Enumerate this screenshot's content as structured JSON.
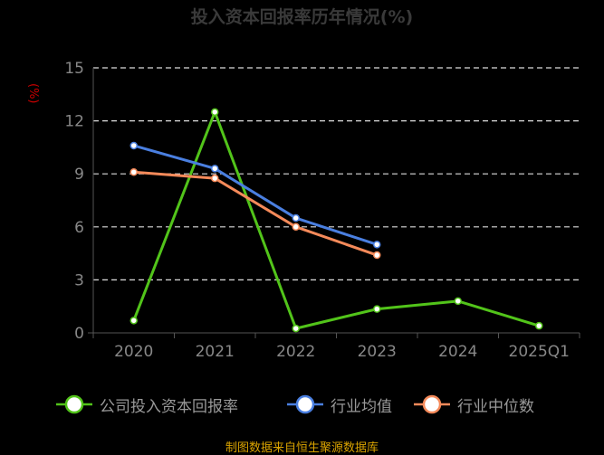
{
  "title": "投入资本回报率历年情况(%)",
  "source": "制图数据来自恒生聚源数据库",
  "chart_data": {
    "type": "line",
    "title": "投入资本回报率历年情况(%)",
    "ylabel": "(%)",
    "xlabel": "",
    "categories": [
      "2020",
      "2021",
      "2022",
      "2023",
      "2024",
      "2025Q1"
    ],
    "ylim": [
      0,
      15
    ],
    "yticks": [
      0,
      3,
      6,
      9,
      12,
      15
    ],
    "grid": true,
    "legend_position": "bottom",
    "series": [
      {
        "name": "公司投入资本回报率",
        "color": "#52c41a",
        "values": [
          0.7,
          12.5,
          0.25,
          1.35,
          1.8,
          0.4
        ]
      },
      {
        "name": "行业均值",
        "color": "#4a7fe0",
        "values": [
          10.6,
          9.3,
          6.5,
          5.0,
          null,
          null
        ]
      },
      {
        "name": "行业中位数",
        "color": "#f58a5a",
        "values": [
          9.1,
          8.75,
          6.0,
          4.4,
          null,
          null
        ]
      }
    ]
  }
}
